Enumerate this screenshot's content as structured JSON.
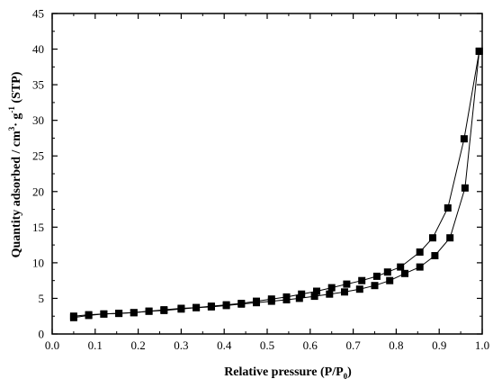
{
  "chart_data": {
    "type": "line",
    "xlabel": {
      "main": "Relative pressure (P/P",
      "sub": "0",
      "tail": ")"
    },
    "ylabel": {
      "a": "Quantity adsorbed / cm",
      "b": "3",
      "c": "· g",
      "d": "-1",
      "e": " (STP)"
    },
    "xlim": [
      0.0,
      1.0
    ],
    "ylim": [
      0,
      45
    ],
    "xticks": [
      "0.0",
      "0.1",
      "0.2",
      "0.3",
      "0.4",
      "0.5",
      "0.6",
      "0.7",
      "0.8",
      "0.9",
      "1.0"
    ],
    "yticks": [
      "0",
      "5",
      "10",
      "15",
      "20",
      "25",
      "30",
      "35",
      "40",
      "45"
    ],
    "grid": false,
    "colors": {
      "line": "#000000",
      "marker": "#000000",
      "background": "#ffffff"
    },
    "series": [
      {
        "marker": "square",
        "x": [
          0.05,
          0.085,
          0.12,
          0.155,
          0.19,
          0.225,
          0.26,
          0.3,
          0.335,
          0.37,
          0.405,
          0.44,
          0.475,
          0.51,
          0.545,
          0.575,
          0.61,
          0.645,
          0.68,
          0.715,
          0.75,
          0.785,
          0.82,
          0.855,
          0.89,
          0.925,
          0.96,
          0.993
        ],
        "y": [
          2.3,
          2.6,
          2.8,
          2.9,
          3.0,
          3.2,
          3.3,
          3.5,
          3.7,
          3.8,
          4.0,
          4.2,
          4.4,
          4.6,
          4.8,
          5.0,
          5.3,
          5.6,
          5.9,
          6.3,
          6.8,
          7.5,
          8.5,
          9.4,
          11.0,
          13.5,
          20.5,
          39.7
        ]
      },
      {
        "marker": "square",
        "x": [
          0.05,
          0.085,
          0.12,
          0.155,
          0.19,
          0.225,
          0.26,
          0.3,
          0.335,
          0.37,
          0.405,
          0.44,
          0.475,
          0.51,
          0.545,
          0.58,
          0.615,
          0.65,
          0.685,
          0.72,
          0.755,
          0.78,
          0.81,
          0.855,
          0.885,
          0.92,
          0.958,
          0.993
        ],
        "y": [
          2.5,
          2.7,
          2.8,
          2.9,
          3.0,
          3.2,
          3.4,
          3.6,
          3.7,
          3.9,
          4.1,
          4.3,
          4.6,
          4.9,
          5.2,
          5.6,
          6.0,
          6.5,
          7.0,
          7.5,
          8.1,
          8.7,
          9.4,
          11.5,
          13.5,
          17.7,
          27.4,
          39.7
        ]
      }
    ]
  }
}
